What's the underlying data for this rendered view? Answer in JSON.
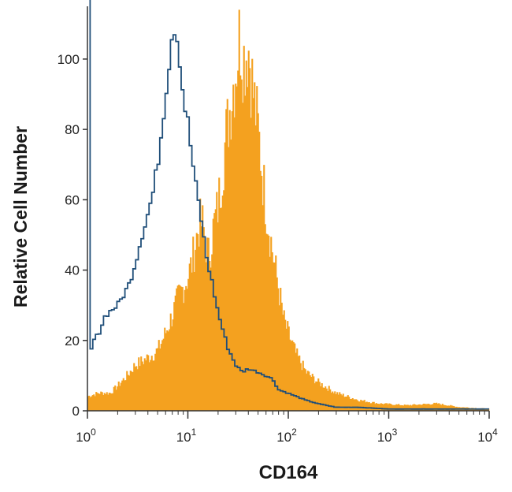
{
  "chart_data": {
    "type": "area",
    "xlabel": "CD164",
    "ylabel": "Relative Cell Number",
    "xscale": "log",
    "xlim": [
      1,
      10000
    ],
    "ylim": [
      0,
      115
    ],
    "grid": false,
    "legend": "none",
    "y_ticks": [
      {
        "value": 0,
        "label": "0"
      },
      {
        "value": 20,
        "label": "20"
      },
      {
        "value": 40,
        "label": "40"
      },
      {
        "value": 60,
        "label": "60"
      },
      {
        "value": 80,
        "label": "80"
      },
      {
        "value": 100,
        "label": "100"
      }
    ],
    "x_ticks": [
      {
        "value": 1,
        "base": "10",
        "exp": "0"
      },
      {
        "value": 10,
        "base": "10",
        "exp": "1"
      },
      {
        "value": 100,
        "base": "10",
        "exp": "2"
      },
      {
        "value": 1000,
        "base": "10",
        "exp": "3"
      },
      {
        "value": 10000,
        "base": "10",
        "exp": "4"
      }
    ],
    "series": [
      {
        "style": "filled",
        "color": "#f4a11f",
        "points": [
          [
            1.0,
            4
          ],
          [
            1.3,
            5
          ],
          [
            1.7,
            5
          ],
          [
            2.0,
            7
          ],
          [
            2.5,
            10
          ],
          [
            3.0,
            13
          ],
          [
            3.5,
            14
          ],
          [
            4.0,
            15
          ],
          [
            5.0,
            17
          ],
          [
            6.0,
            22
          ],
          [
            7.0,
            27
          ],
          [
            8.0,
            32
          ],
          [
            9.0,
            35
          ],
          [
            10,
            38
          ],
          [
            11,
            42
          ],
          [
            12,
            48
          ],
          [
            13,
            53
          ],
          [
            14,
            53
          ],
          [
            15,
            48
          ],
          [
            16,
            44
          ],
          [
            17,
            47
          ],
          [
            18,
            52
          ],
          [
            20,
            58
          ],
          [
            22,
            68
          ],
          [
            24,
            78
          ],
          [
            26,
            85
          ],
          [
            28,
            92
          ],
          [
            30,
            97
          ],
          [
            33,
            107
          ],
          [
            36,
            100
          ],
          [
            40,
            104
          ],
          [
            45,
            90
          ],
          [
            50,
            80
          ],
          [
            55,
            68
          ],
          [
            60,
            58
          ],
          [
            70,
            45
          ],
          [
            80,
            35
          ],
          [
            90,
            26
          ],
          [
            100,
            22
          ],
          [
            120,
            16
          ],
          [
            150,
            11
          ],
          [
            200,
            8
          ],
          [
            300,
            5
          ],
          [
            500,
            3
          ],
          [
            800,
            2
          ],
          [
            1500,
            1.5
          ],
          [
            3000,
            2
          ],
          [
            5000,
            1
          ],
          [
            10000,
            0.5
          ]
        ]
      },
      {
        "style": "outline",
        "color": "#1f4e79",
        "points": [
          [
            1.0,
            115
          ],
          [
            1.04,
            115
          ],
          [
            1.07,
            67
          ],
          [
            1.09,
            17
          ],
          [
            1.15,
            20
          ],
          [
            1.3,
            22
          ],
          [
            1.5,
            27
          ],
          [
            1.8,
            29
          ],
          [
            2.0,
            30
          ],
          [
            2.3,
            33
          ],
          [
            2.6,
            36
          ],
          [
            3.0,
            42
          ],
          [
            3.5,
            50
          ],
          [
            4.0,
            56
          ],
          [
            4.5,
            62
          ],
          [
            5.0,
            70
          ],
          [
            5.5,
            80
          ],
          [
            6.0,
            90
          ],
          [
            6.5,
            99
          ],
          [
            7.0,
            108
          ],
          [
            7.5,
            110
          ],
          [
            8.0,
            104
          ],
          [
            8.5,
            98
          ],
          [
            9.0,
            89
          ],
          [
            10,
            82
          ],
          [
            11,
            72
          ],
          [
            12,
            64
          ],
          [
            13,
            58
          ],
          [
            14,
            52
          ],
          [
            15,
            45
          ],
          [
            17,
            38
          ],
          [
            20,
            28
          ],
          [
            25,
            18
          ],
          [
            30,
            13
          ],
          [
            35,
            11
          ],
          [
            40,
            12
          ],
          [
            50,
            11
          ],
          [
            60,
            10
          ],
          [
            70,
            9
          ],
          [
            80,
            6
          ],
          [
            100,
            5
          ],
          [
            150,
            3
          ],
          [
            200,
            2
          ],
          [
            300,
            1
          ],
          [
            500,
            1
          ],
          [
            1000,
            0.5
          ],
          [
            10000,
            0.5
          ]
        ]
      }
    ]
  }
}
